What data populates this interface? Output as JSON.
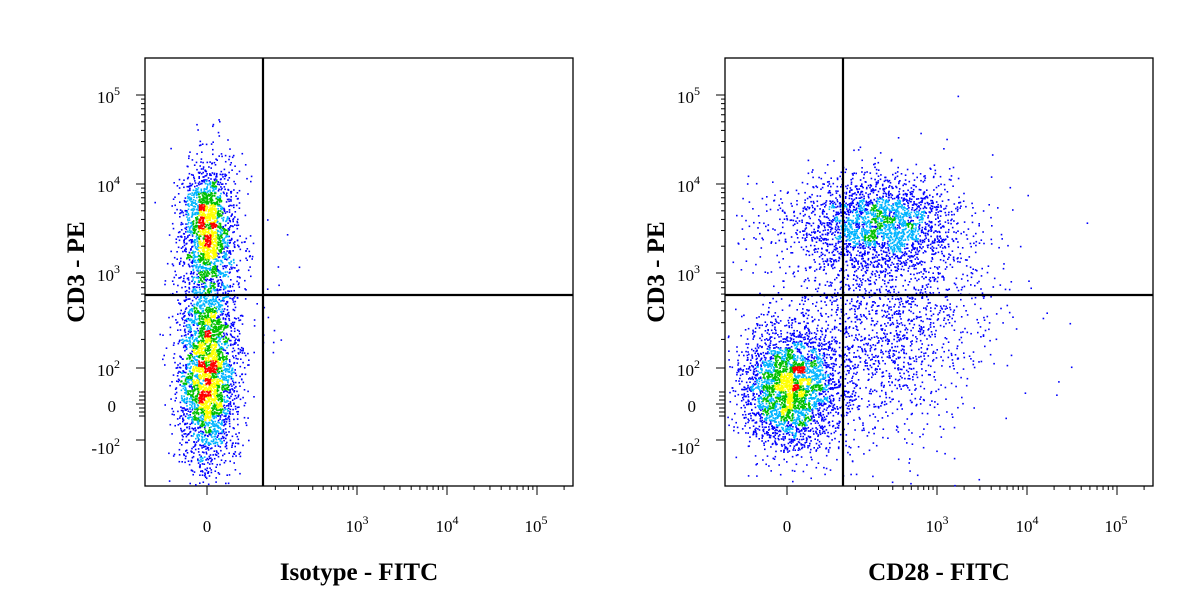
{
  "chart_data": [
    {
      "type": "scatter",
      "plot_style": "density dot plot (flow cytometry pseudocolor)",
      "xlabel": "Isotype - FITC",
      "ylabel": "CD3 - PE",
      "x_scale": "biexponential",
      "y_scale": "biexponential",
      "x_ticks": [
        {
          "base": "",
          "exp": "",
          "zero": "0"
        },
        {
          "base": "10",
          "exp": "3"
        },
        {
          "base": "10",
          "exp": "4"
        },
        {
          "base": "10",
          "exp": "5"
        }
      ],
      "y_ticks": [
        {
          "base": "10",
          "exp": "5"
        },
        {
          "base": "10",
          "exp": "4"
        },
        {
          "base": "10",
          "exp": "3"
        },
        {
          "base": "10",
          "exp": "2"
        },
        {
          "base": "",
          "exp": "",
          "zero": "0"
        },
        {
          "base": "-10",
          "exp": "2"
        }
      ],
      "quadrant_gate": {
        "x": 250,
        "y": 600
      },
      "populations": [
        {
          "x_center": 0,
          "y_center": 100,
          "description": "CD3- cells, FITC negative",
          "fraction": 0.5
        },
        {
          "x_center": 0,
          "y_center": 4000,
          "description": "CD3+ cells, FITC negative",
          "fraction": 0.5
        }
      ]
    },
    {
      "type": "scatter",
      "plot_style": "density dot plot (flow cytometry pseudocolor)",
      "xlabel": "CD28 - FITC",
      "ylabel": "CD3 - PE",
      "x_scale": "biexponential",
      "y_scale": "biexponential",
      "x_ticks": [
        {
          "base": "",
          "exp": "",
          "zero": "0"
        },
        {
          "base": "10",
          "exp": "3"
        },
        {
          "base": "10",
          "exp": "4"
        },
        {
          "base": "10",
          "exp": "5"
        }
      ],
      "y_ticks": [
        {
          "base": "10",
          "exp": "5"
        },
        {
          "base": "10",
          "exp": "4"
        },
        {
          "base": "10",
          "exp": "3"
        },
        {
          "base": "10",
          "exp": "2"
        },
        {
          "base": "",
          "exp": "",
          "zero": "0"
        },
        {
          "base": "-10",
          "exp": "2"
        }
      ],
      "quadrant_gate": {
        "x": 250,
        "y": 600
      },
      "populations": [
        {
          "x_center": 0,
          "y_center": 80,
          "description": "CD3- CD28- cells",
          "fraction": 0.45
        },
        {
          "x_center": 400,
          "y_center": 3500,
          "description": "CD3+ CD28+ cells",
          "fraction": 0.35
        },
        {
          "x_center": 400,
          "y_center": 200,
          "description": "CD3- CD28 dim",
          "fraction": 0.2
        }
      ]
    }
  ],
  "colors": {
    "density_low": "#0000ff",
    "density_midlow": "#00b4ff",
    "density_mid": "#00c000",
    "density_midhigh": "#ffff00",
    "density_high": "#ff0000",
    "axis": "#000000"
  }
}
